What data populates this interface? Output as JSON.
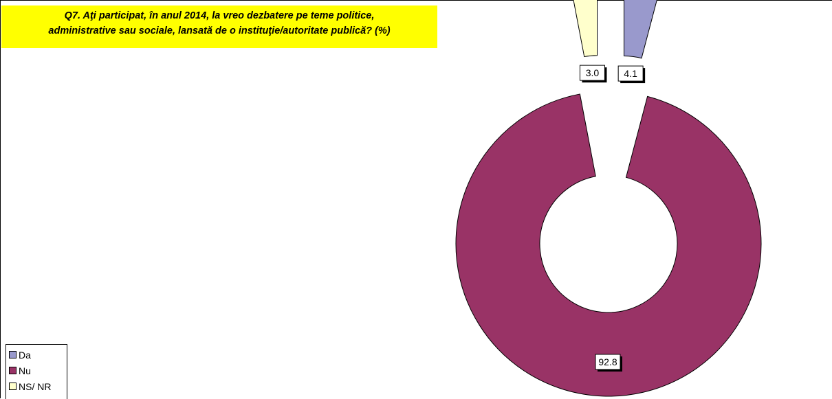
{
  "title_line1": "Q7. Aţi participat, în anul 2014, la vreo dezbatere pe teme politice,",
  "title_line2": "administrative sau sociale, lansată de o instituţie/autoritate publică? (%)",
  "chart_data": {
    "type": "pie",
    "variant": "exploded-donut",
    "title": "Q7. Aţi participat, în anul 2014, la vreo dezbatere pe teme politice, administrative sau sociale, lansată de o instituţie/autoritate publică? (%)",
    "series": [
      {
        "label": "Da",
        "value": 4.1,
        "color": "#9999cc"
      },
      {
        "label": "Nu",
        "value": 92.8,
        "color": "#993366"
      },
      {
        "label": "NS/ NR",
        "value": 3.0,
        "color": "#ffffcc"
      }
    ],
    "legend_position": "bottom-left"
  }
}
